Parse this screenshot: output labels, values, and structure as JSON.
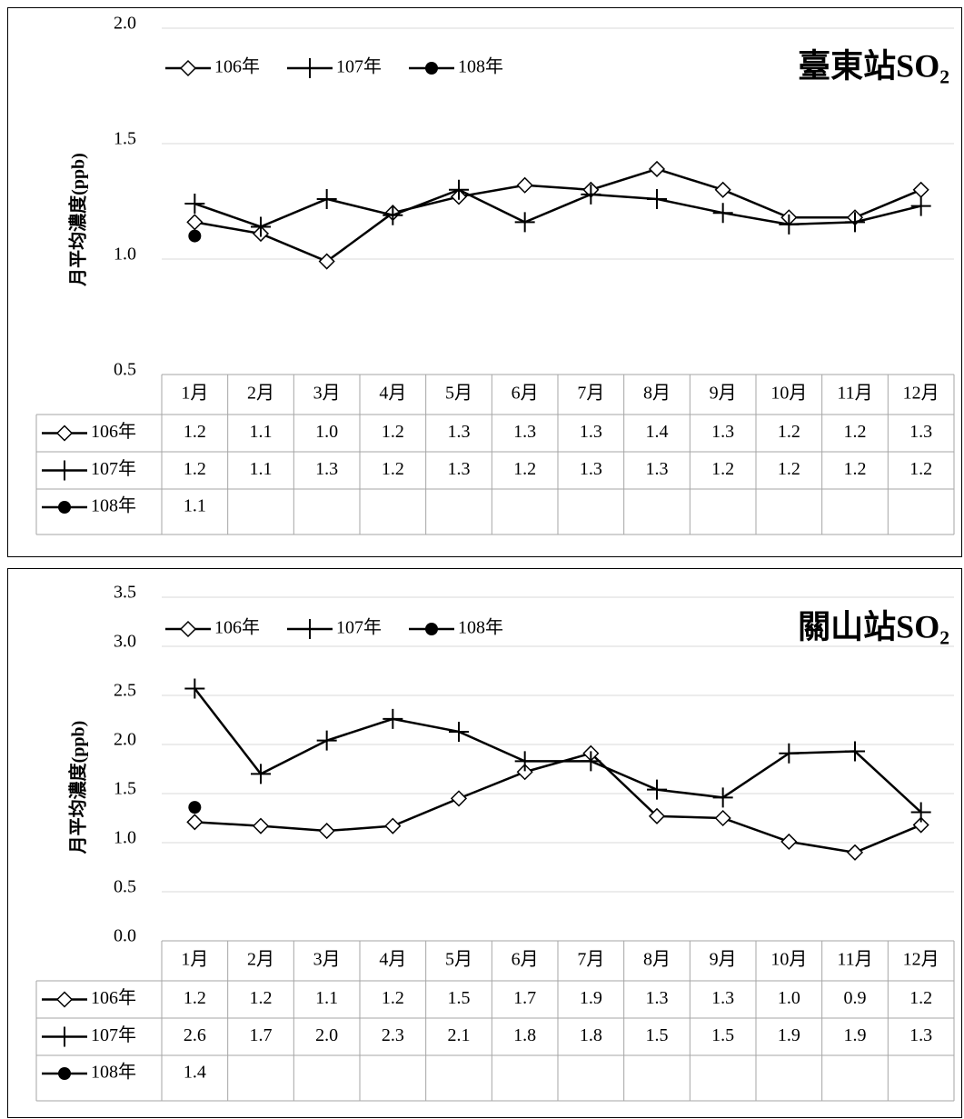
{
  "chart_data": [
    {
      "type": "line",
      "title": "臺東站SO₂",
      "y_label": "月平均濃度(ppb)",
      "categories": [
        "1月",
        "2月",
        "3月",
        "4月",
        "5月",
        "6月",
        "7月",
        "8月",
        "9月",
        "10月",
        "11月",
        "12月"
      ],
      "ylim": [
        0.5,
        2.0
      ],
      "yticks": [
        0.5,
        {
          "value": 1.0,
          "label": "1.0"
        },
        1.5,
        {
          "value": 2.0,
          "label": "2.0"
        }
      ],
      "grid": true,
      "series": [
        {
          "name": "106年",
          "color": "#000000",
          "marker": "diamond",
          "values": [
            1.16,
            1.11,
            0.99,
            1.2,
            1.27,
            1.32,
            1.3,
            1.39,
            1.3,
            1.18,
            1.18,
            1.3
          ],
          "value_labels": [
            "1.2",
            "1.1",
            "1.0",
            "1.2",
            "1.3",
            "1.3",
            "1.3",
            "1.4",
            "1.3",
            "1.2",
            "1.2",
            "1.3"
          ]
        },
        {
          "name": "107年",
          "color": "#000000",
          "marker": "plus",
          "values": [
            1.24,
            1.14,
            1.26,
            1.19,
            1.3,
            1.16,
            1.28,
            1.26,
            1.2,
            1.15,
            1.16,
            1.23
          ],
          "value_labels": [
            "1.2",
            "1.1",
            "1.3",
            "1.2",
            "1.3",
            "1.2",
            "1.3",
            "1.3",
            "1.2",
            "1.2",
            "1.2",
            "1.2"
          ]
        },
        {
          "name": "108年",
          "color": "#000000",
          "marker": "circle",
          "values": [
            1.1,
            null,
            null,
            null,
            null,
            null,
            null,
            null,
            null,
            null,
            null,
            null
          ],
          "value_labels": [
            "1.1",
            null,
            null,
            null,
            null,
            null,
            null,
            null,
            null,
            null,
            null,
            null
          ]
        }
      ]
    },
    {
      "type": "line",
      "title": "關山站SO₂",
      "y_label": "月平均濃度(ppb)",
      "categories": [
        "1月",
        "2月",
        "3月",
        "4月",
        "5月",
        "6月",
        "7月",
        "8月",
        "9月",
        "10月",
        "11月",
        "12月"
      ],
      "ylim": [
        0.0,
        3.5
      ],
      "yticks": [
        {
          "value": 0,
          "label": "0.0"
        },
        0.5,
        {
          "value": 1,
          "label": "1.0"
        },
        1.5,
        {
          "value": 2,
          "label": "2.0"
        },
        2.5,
        {
          "value": 3,
          "label": "3.0"
        },
        3.5
      ],
      "grid": true,
      "series": [
        {
          "name": "106年",
          "color": "#000000",
          "marker": "diamond",
          "values": [
            1.21,
            1.17,
            1.12,
            1.17,
            1.45,
            1.72,
            1.91,
            1.27,
            1.25,
            1.01,
            0.9,
            1.18
          ],
          "value_labels": [
            "1.2",
            "1.2",
            "1.1",
            "1.2",
            "1.5",
            "1.7",
            "1.9",
            "1.3",
            "1.3",
            "1.0",
            "0.9",
            "1.2"
          ]
        },
        {
          "name": "107年",
          "color": "#000000",
          "marker": "plus",
          "values": [
            2.57,
            1.7,
            2.04,
            2.26,
            2.13,
            1.83,
            1.83,
            1.54,
            1.46,
            1.91,
            1.93,
            1.31
          ],
          "value_labels": [
            "2.6",
            "1.7",
            "2.0",
            "2.3",
            "2.1",
            "1.8",
            "1.8",
            "1.5",
            "1.5",
            "1.9",
            "1.9",
            "1.3"
          ]
        },
        {
          "name": "108年",
          "color": "#000000",
          "marker": "circle",
          "values": [
            1.36,
            null,
            null,
            null,
            null,
            null,
            null,
            null,
            null,
            null,
            null,
            null
          ],
          "value_labels": [
            "1.4",
            null,
            null,
            null,
            null,
            null,
            null,
            null,
            null,
            null,
            null,
            null
          ]
        }
      ]
    }
  ]
}
